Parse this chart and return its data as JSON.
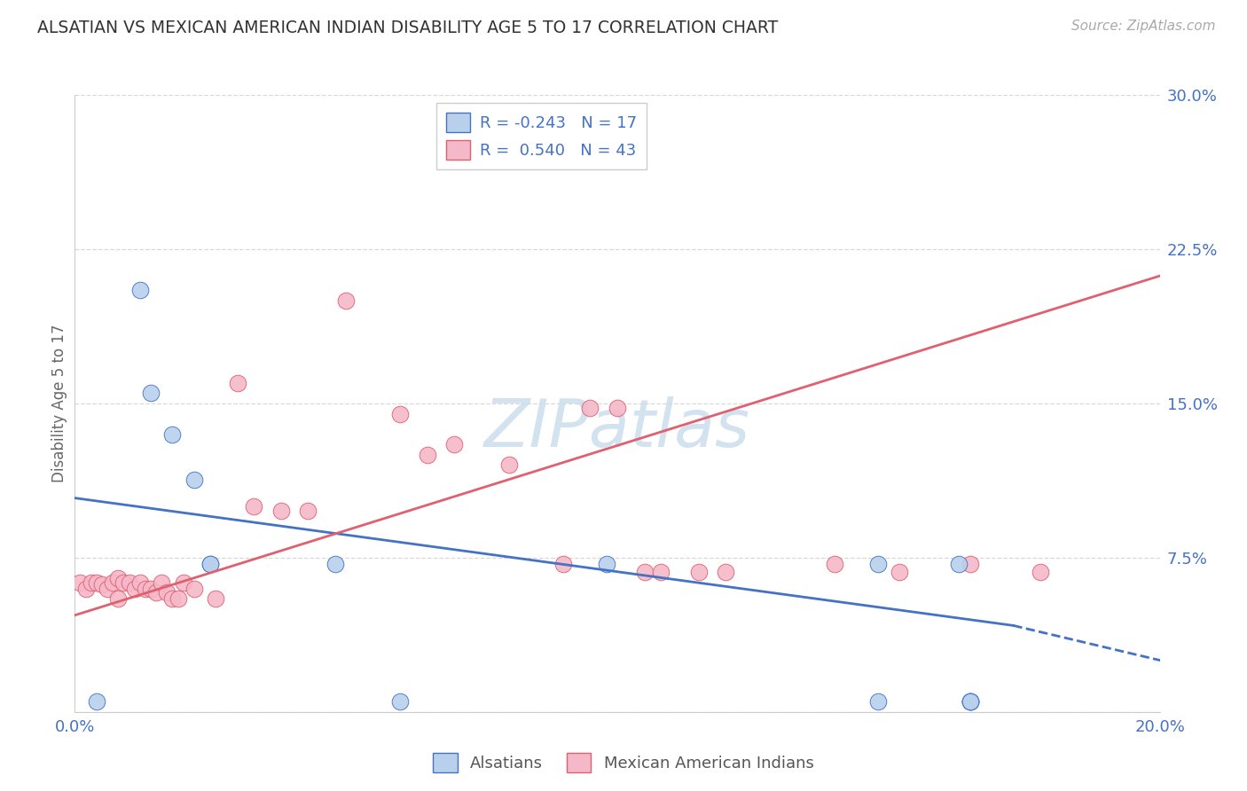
{
  "title": "ALSATIAN VS MEXICAN AMERICAN INDIAN DISABILITY AGE 5 TO 17 CORRELATION CHART",
  "source": "Source: ZipAtlas.com",
  "ylabel": "Disability Age 5 to 17",
  "xmin": 0.0,
  "xmax": 0.2,
  "ymin": 0.0,
  "ymax": 0.3,
  "yticks": [
    0.0,
    0.075,
    0.15,
    0.225,
    0.3
  ],
  "ytick_labels": [
    "",
    "7.5%",
    "15.0%",
    "22.5%",
    "30.0%"
  ],
  "xticks": [
    0.0,
    0.05,
    0.1,
    0.15,
    0.2
  ],
  "xtick_labels": [
    "0.0%",
    "",
    "",
    "",
    "20.0%"
  ],
  "blue_label": "Alsatians",
  "pink_label": "Mexican American Indians",
  "blue_R": -0.243,
  "blue_N": 17,
  "pink_R": 0.54,
  "pink_N": 43,
  "blue_dot_color": "#b8d0eb",
  "pink_dot_color": "#f4b8c8",
  "blue_line_color": "#4472c4",
  "pink_line_color": "#e06070",
  "blue_trend": [
    0.0,
    0.104,
    0.173,
    0.042
  ],
  "blue_trend_dash": [
    0.173,
    0.042,
    0.205,
    0.022
  ],
  "pink_trend": [
    0.0,
    0.047,
    0.2,
    0.212
  ],
  "blue_points_x": [
    0.004,
    0.012,
    0.014,
    0.018,
    0.022,
    0.048,
    0.098,
    0.148,
    0.163,
    0.165,
    0.165,
    0.165,
    0.165,
    0.025,
    0.025,
    0.06,
    0.148
  ],
  "blue_points_y": [
    0.005,
    0.205,
    0.155,
    0.135,
    0.113,
    0.072,
    0.072,
    0.072,
    0.072,
    0.005,
    0.005,
    0.005,
    0.005,
    0.072,
    0.072,
    0.005,
    0.005
  ],
  "pink_points_x": [
    0.001,
    0.002,
    0.003,
    0.004,
    0.005,
    0.006,
    0.007,
    0.008,
    0.008,
    0.009,
    0.01,
    0.011,
    0.012,
    0.013,
    0.014,
    0.015,
    0.016,
    0.017,
    0.018,
    0.019,
    0.02,
    0.022,
    0.026,
    0.03,
    0.033,
    0.038,
    0.043,
    0.05,
    0.06,
    0.065,
    0.07,
    0.08,
    0.09,
    0.095,
    0.1,
    0.105,
    0.108,
    0.115,
    0.12,
    0.14,
    0.152,
    0.165,
    0.178
  ],
  "pink_points_y": [
    0.063,
    0.06,
    0.063,
    0.063,
    0.062,
    0.06,
    0.063,
    0.065,
    0.055,
    0.063,
    0.063,
    0.06,
    0.063,
    0.06,
    0.06,
    0.058,
    0.063,
    0.058,
    0.055,
    0.055,
    0.063,
    0.06,
    0.055,
    0.16,
    0.1,
    0.098,
    0.098,
    0.2,
    0.145,
    0.125,
    0.13,
    0.12,
    0.072,
    0.148,
    0.148,
    0.068,
    0.068,
    0.068,
    0.068,
    0.072,
    0.068,
    0.072,
    0.068
  ],
  "watermark_text": "ZIPatlas",
  "watermark_color": "#ccdded",
  "background_color": "#ffffff",
  "grid_color": "#d8d8d8",
  "title_color": "#333333",
  "source_color": "#aaaaaa",
  "axis_color": "#4472c4",
  "ylabel_color": "#666666"
}
